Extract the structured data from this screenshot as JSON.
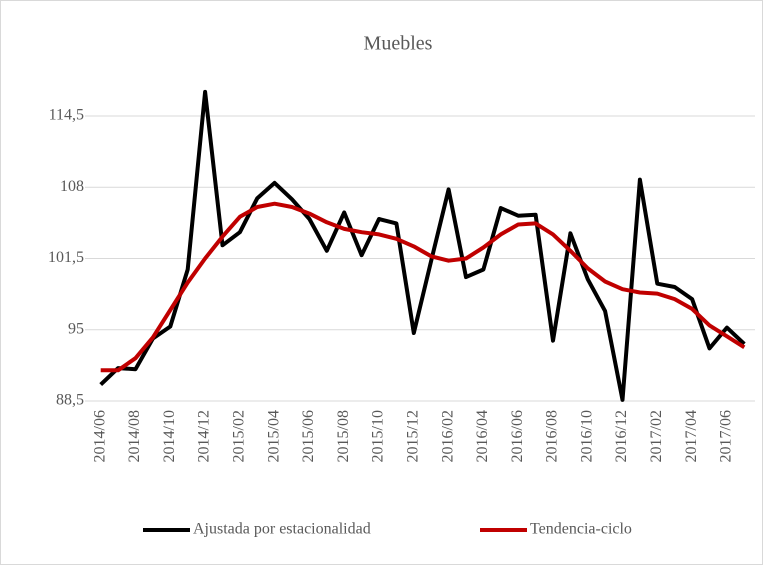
{
  "chart_data": {
    "type": "line",
    "title": "Muebles",
    "categories": [
      "2014/06",
      null,
      "2014/08",
      null,
      "2014/10",
      null,
      "2014/12",
      null,
      "2015/02",
      null,
      "2015/04",
      null,
      "2015/06",
      null,
      "2015/08",
      null,
      "2015/10",
      null,
      "2015/12",
      null,
      "2016/02",
      null,
      "2016/04",
      null,
      "2016/06",
      null,
      "2016/08",
      null,
      "2016/10",
      null,
      "2016/12",
      null,
      "2017/02",
      null,
      "2017/04",
      null,
      "2017/06",
      null
    ],
    "series": [
      {
        "name": "Ajustada por estacionalidad",
        "color": "#000000",
        "values": [
          90.0,
          91.5,
          91.4,
          94.2,
          95.3,
          100.5,
          116.7,
          102.7,
          103.9,
          107.0,
          108.4,
          106.9,
          105.1,
          102.2,
          105.7,
          101.8,
          105.1,
          104.7,
          94.7,
          101.3,
          107.8,
          99.8,
          100.5,
          106.1,
          105.4,
          105.5,
          94.0,
          103.8,
          99.6,
          96.7,
          88.6,
          108.7,
          99.2,
          98.9,
          97.8,
          93.3,
          95.2,
          93.7
        ]
      },
      {
        "name": "Tendencia-ciclo",
        "color": "#c00000",
        "values": [
          91.3,
          91.3,
          92.4,
          94.3,
          96.8,
          99.3,
          101.5,
          103.5,
          105.3,
          106.2,
          106.5,
          106.2,
          105.6,
          104.8,
          104.2,
          103.9,
          103.7,
          103.3,
          102.6,
          101.7,
          101.3,
          101.5,
          102.5,
          103.7,
          104.6,
          104.7,
          103.7,
          102.2,
          100.6,
          99.4,
          98.7,
          98.4,
          98.3,
          97.8,
          96.9,
          95.4,
          94.4,
          93.4
        ]
      }
    ],
    "ylim": [
      88.5,
      114.5
    ],
    "yticks": [
      {
        "value": 88.5,
        "label": "88,5"
      },
      95,
      {
        "value": 101.5,
        "label": "101,5"
      },
      108,
      {
        "value": 114.5,
        "label": "114,5"
      }
    ],
    "grid": true,
    "legend": "bottom"
  }
}
